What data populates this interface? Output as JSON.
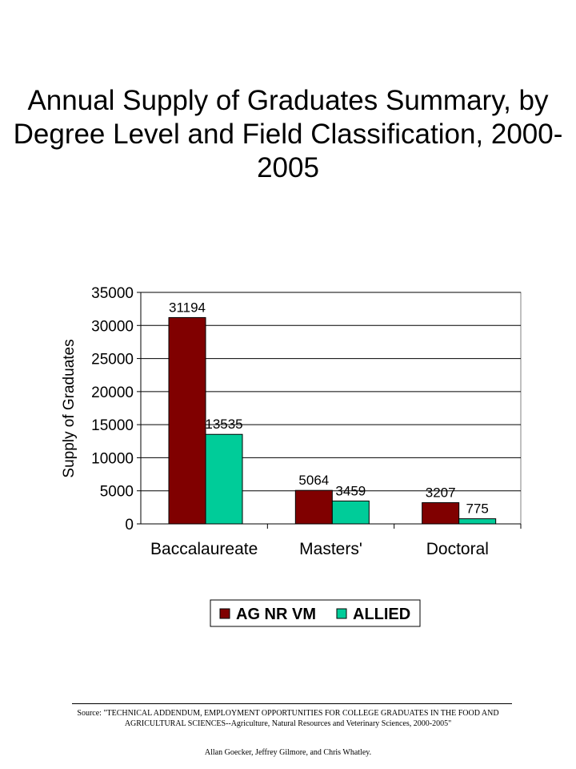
{
  "title": "Annual Supply of Graduates Summary, by Degree Level and Field Classification, 2000-2005",
  "footer": {
    "source": "Source: \"TECHNICAL ADDENDUM, EMPLOYMENT OPPORTUNITIES FOR COLLEGE GRADUATES IN THE FOOD AND AGRICULTURAL SCIENCES--Agriculture, Natural Resources and Veterinary Sciences, 2000-2005\"",
    "authors": "Allan Goecker, Jeffrey Gilmore, and Chris Whatley."
  },
  "chart_data": {
    "type": "bar",
    "title": "Annual Supply of Graduates Summary, by Degree Level and Field Classification, 2000-2005",
    "xlabel": "",
    "ylabel": "Supply of Graduates",
    "categories": [
      "Baccalaureate",
      "Masters'",
      "Doctoral"
    ],
    "series": [
      {
        "name": "AG NR VM",
        "values": [
          31194,
          5064,
          3207
        ],
        "color": "#800000"
      },
      {
        "name": "ALLIED",
        "values": [
          13535,
          3459,
          775
        ],
        "color": "#00cc99"
      }
    ],
    "data_labels": [
      [
        "31194",
        "5064",
        "3207"
      ],
      [
        "13535",
        "3459",
        "775"
      ]
    ],
    "ylim": [
      0,
      35000
    ],
    "yticks": [
      0,
      5000,
      10000,
      15000,
      20000,
      25000,
      30000,
      35000
    ],
    "grid": true,
    "legend_position": "bottom"
  }
}
